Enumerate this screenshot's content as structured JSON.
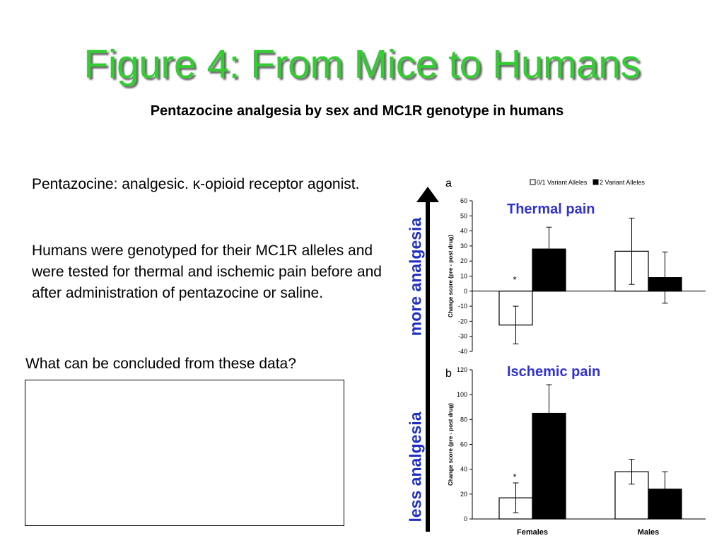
{
  "title": "Figure 4: From Mice to Humans",
  "subtitle": "Pentazocine analgesia by sex and MC1R genotype in humans",
  "text": {
    "p1": "Pentazocine: analgesic. κ-opioid receptor agonist.",
    "p2": "Humans were genotyped for their MC1R alleles and were tested for thermal and ischemic pain before and after administration of pentazocine or saline.",
    "question": "What can be concluded from these data?",
    "more_label": "more analgesia",
    "less_label": "less analgesia"
  },
  "colors": {
    "title": "#33cc33",
    "label_blue": "#1f2fbf",
    "pain_label": "#3333cc"
  },
  "chart_data": [
    {
      "panel": "a",
      "annotation": "Thermal pain",
      "type": "bar",
      "categories": [
        "Females",
        "Males"
      ],
      "series": [
        {
          "name": "0/1 Variant Alleles",
          "color": "#ffffff",
          "values": [
            -22.5,
            26.5
          ],
          "errors": [
            12.5,
            22
          ]
        },
        {
          "name": "2 Variant Alleles",
          "color": "#000000",
          "values": [
            28,
            9
          ],
          "errors": [
            14.5,
            17
          ]
        }
      ],
      "ylabel": "Change score (pre - post drug)",
      "ylim": [
        -40,
        60
      ],
      "yticks": [
        60,
        50,
        40,
        30,
        20,
        10,
        0,
        -10,
        -20,
        -30,
        -40
      ],
      "star": "*",
      "legend_position": "top"
    },
    {
      "panel": "b",
      "annotation": "Ischemic pain",
      "type": "bar",
      "categories": [
        "Females",
        "Males"
      ],
      "series": [
        {
          "name": "0/1 Variant Alleles",
          "color": "#ffffff",
          "values": [
            17,
            38
          ],
          "errors": [
            12,
            10
          ]
        },
        {
          "name": "2 Variant Alleles",
          "color": "#000000",
          "values": [
            85,
            24
          ],
          "errors": [
            23,
            14
          ]
        }
      ],
      "ylabel": "Change score (pre - post drug)",
      "ylim": [
        0,
        120
      ],
      "yticks": [
        120,
        100,
        80,
        60,
        40,
        20,
        0
      ],
      "star": "*",
      "xlabels": [
        "Females",
        "Males"
      ]
    }
  ]
}
